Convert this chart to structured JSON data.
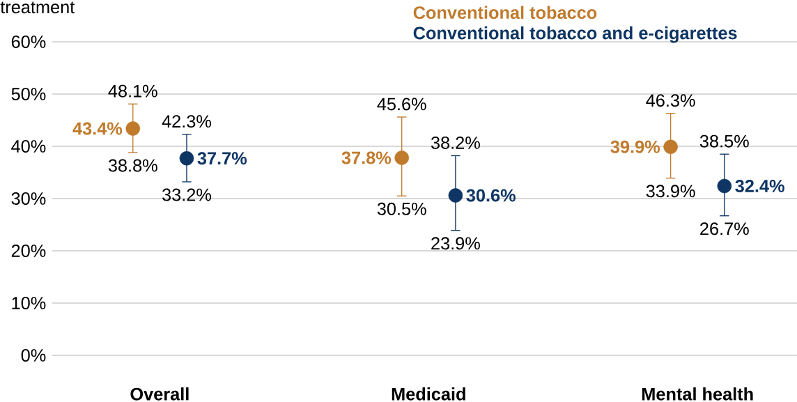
{
  "chart_data": {
    "type": "scatter",
    "title": "treatment",
    "categories": [
      "Overall",
      "Medicaid",
      "Mental health"
    ],
    "series": [
      {
        "name": "Conventional tobacco",
        "color": "#c07a2c",
        "values": [
          43.4,
          37.8,
          39.9
        ],
        "errors": [
          [
            38.8,
            48.1
          ],
          [
            30.5,
            45.6
          ],
          [
            33.9,
            46.3
          ]
        ],
        "value_labels": [
          "43.4%",
          "37.8%",
          "39.9%"
        ]
      },
      {
        "name": "Conventional tobacco and e-cigarettes",
        "color": "#0e3563",
        "values": [
          37.7,
          30.6,
          32.4
        ],
        "errors": [
          [
            33.2,
            42.3
          ],
          [
            23.9,
            38.2
          ],
          [
            26.7,
            38.5
          ]
        ],
        "value_labels": [
          "37.7%",
          "30.6%",
          "32.4%"
        ]
      }
    ],
    "annotations": [
      "48.1%",
      "38.8%",
      "42.3%",
      "33.2%",
      "45.6%",
      "30.5%",
      "38.2%",
      "23.9%",
      "46.3%",
      "33.9%",
      "38.5%",
      "26.7%"
    ],
    "ylim": [
      0,
      60
    ],
    "yticks": [
      {
        "value": 0,
        "label": "0%"
      },
      {
        "value": 10,
        "label": "10%"
      },
      {
        "value": 20,
        "label": "20%"
      },
      {
        "value": 30,
        "label": "30%"
      },
      {
        "value": 40,
        "label": "40%"
      },
      {
        "value": 50,
        "label": "50%"
      },
      {
        "value": 60,
        "label": "60%"
      }
    ],
    "grid": "y",
    "legend": "top right"
  }
}
